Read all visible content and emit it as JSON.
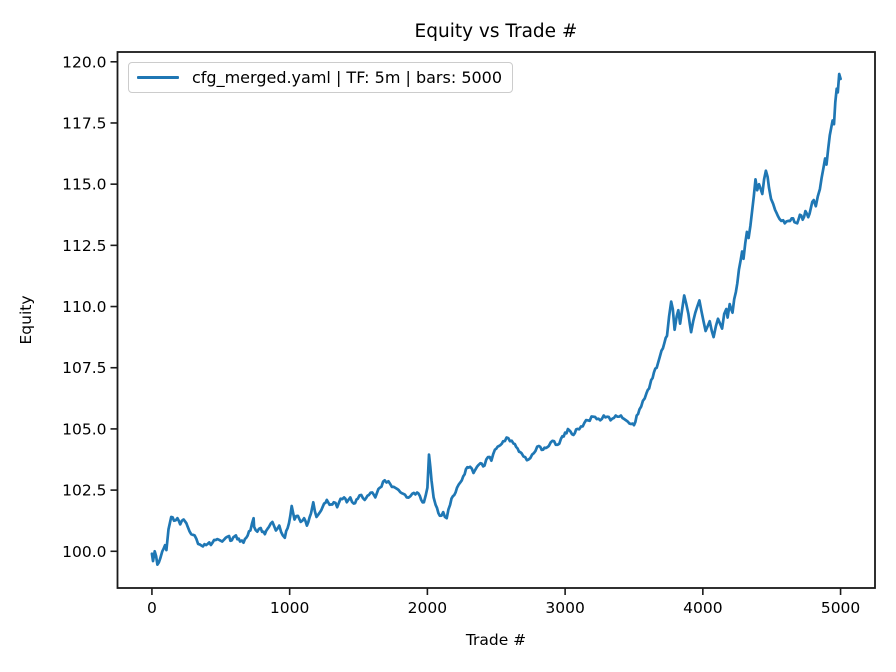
{
  "title": "Equity vs Trade #",
  "legend": {
    "label": "cfg_merged.yaml | TF: 5m | bars: 5000",
    "line_color": "#1f77b4"
  },
  "colors": {
    "series_blue": "#1f77b4",
    "spine": "#1a1a1a",
    "text": "#000000",
    "legend_border": "#cccccc"
  },
  "chart_data": {
    "type": "line",
    "title": "Equity vs Trade #",
    "xlabel": "Trade #",
    "ylabel": "Equity",
    "xlim": [
      -250,
      5250
    ],
    "ylim": [
      98.5,
      120.4
    ],
    "grid": false,
    "legend_position": "upper left",
    "x_ticks": [
      0,
      1000,
      2000,
      3000,
      4000,
      5000
    ],
    "x_tick_labels": [
      "0",
      "1000",
      "2000",
      "3000",
      "4000",
      "5000"
    ],
    "y_ticks": [
      100.0,
      102.5,
      105.0,
      107.5,
      110.0,
      112.5,
      115.0,
      117.5,
      120.0
    ],
    "y_tick_labels": [
      "100.0",
      "102.5",
      "105.0",
      "107.5",
      "110.0",
      "112.5",
      "115.0",
      "117.5",
      "120.0"
    ],
    "series": [
      {
        "name": "cfg_merged.yaml | TF: 5m | bars: 5000",
        "color": "#1f77b4",
        "points": [
          [
            0,
            99.9
          ],
          [
            8,
            99.6
          ],
          [
            20,
            100.0
          ],
          [
            40,
            99.45
          ],
          [
            60,
            99.7
          ],
          [
            75,
            100.0
          ],
          [
            95,
            100.25
          ],
          [
            105,
            100.05
          ],
          [
            120,
            100.9
          ],
          [
            140,
            101.4
          ],
          [
            160,
            101.25
          ],
          [
            185,
            101.35
          ],
          [
            205,
            101.1
          ],
          [
            230,
            101.3
          ],
          [
            260,
            101.0
          ],
          [
            285,
            100.7
          ],
          [
            310,
            100.65
          ],
          [
            335,
            100.3
          ],
          [
            370,
            100.2
          ],
          [
            405,
            100.3
          ],
          [
            440,
            100.35
          ],
          [
            475,
            100.5
          ],
          [
            510,
            100.4
          ],
          [
            550,
            100.6
          ],
          [
            580,
            100.45
          ],
          [
            610,
            100.65
          ],
          [
            640,
            100.4
          ],
          [
            665,
            100.35
          ],
          [
            695,
            100.65
          ],
          [
            715,
            100.85
          ],
          [
            738,
            101.35
          ],
          [
            742,
            101.0
          ],
          [
            765,
            100.8
          ],
          [
            790,
            100.95
          ],
          [
            820,
            100.7
          ],
          [
            850,
            101.0
          ],
          [
            875,
            101.2
          ],
          [
            900,
            100.85
          ],
          [
            925,
            101.05
          ],
          [
            950,
            100.65
          ],
          [
            965,
            100.55
          ],
          [
            995,
            101.15
          ],
          [
            1015,
            101.85
          ],
          [
            1035,
            101.3
          ],
          [
            1060,
            101.45
          ],
          [
            1080,
            101.2
          ],
          [
            1105,
            101.35
          ],
          [
            1125,
            101.05
          ],
          [
            1155,
            101.55
          ],
          [
            1172,
            102.0
          ],
          [
            1195,
            101.4
          ],
          [
            1220,
            101.6
          ],
          [
            1250,
            101.95
          ],
          [
            1270,
            102.1
          ],
          [
            1290,
            101.9
          ],
          [
            1320,
            102.0
          ],
          [
            1345,
            101.8
          ],
          [
            1370,
            102.15
          ],
          [
            1395,
            102.2
          ],
          [
            1415,
            102.0
          ],
          [
            1440,
            102.2
          ],
          [
            1465,
            101.95
          ],
          [
            1495,
            102.15
          ],
          [
            1520,
            102.3
          ],
          [
            1545,
            102.1
          ],
          [
            1575,
            102.3
          ],
          [
            1600,
            102.4
          ],
          [
            1622,
            102.2
          ],
          [
            1655,
            102.6
          ],
          [
            1690,
            102.9
          ],
          [
            1730,
            102.75
          ],
          [
            1780,
            102.55
          ],
          [
            1825,
            102.35
          ],
          [
            1850,
            102.2
          ],
          [
            1890,
            102.35
          ],
          [
            1925,
            102.4
          ],
          [
            1955,
            102.1
          ],
          [
            1975,
            102.0
          ],
          [
            2000,
            102.6
          ],
          [
            2012,
            103.95
          ],
          [
            2030,
            102.9
          ],
          [
            2045,
            102.2
          ],
          [
            2060,
            101.9
          ],
          [
            2090,
            101.45
          ],
          [
            2115,
            101.6
          ],
          [
            2140,
            101.35
          ],
          [
            2165,
            101.9
          ],
          [
            2185,
            102.25
          ],
          [
            2215,
            102.6
          ],
          [
            2250,
            102.9
          ],
          [
            2280,
            103.35
          ],
          [
            2310,
            103.45
          ],
          [
            2335,
            103.2
          ],
          [
            2360,
            103.45
          ],
          [
            2385,
            103.6
          ],
          [
            2415,
            103.5
          ],
          [
            2440,
            103.85
          ],
          [
            2465,
            103.7
          ],
          [
            2490,
            104.15
          ],
          [
            2520,
            104.3
          ],
          [
            2550,
            104.5
          ],
          [
            2575,
            104.65
          ],
          [
            2600,
            104.5
          ],
          [
            2625,
            104.4
          ],
          [
            2655,
            104.2
          ],
          [
            2685,
            104.0
          ],
          [
            2710,
            103.85
          ],
          [
            2735,
            103.75
          ],
          [
            2760,
            103.95
          ],
          [
            2785,
            104.1
          ],
          [
            2810,
            104.3
          ],
          [
            2840,
            104.15
          ],
          [
            2870,
            104.25
          ],
          [
            2895,
            104.45
          ],
          [
            2920,
            104.5
          ],
          [
            2945,
            104.35
          ],
          [
            2970,
            104.6
          ],
          [
            3000,
            104.85
          ],
          [
            3030,
            104.95
          ],
          [
            3060,
            104.75
          ],
          [
            3090,
            105.0
          ],
          [
            3115,
            105.1
          ],
          [
            3140,
            105.25
          ],
          [
            3165,
            105.35
          ],
          [
            3205,
            105.5
          ],
          [
            3230,
            105.4
          ],
          [
            3255,
            105.35
          ],
          [
            3280,
            105.55
          ],
          [
            3305,
            105.5
          ],
          [
            3330,
            105.35
          ],
          [
            3355,
            105.45
          ],
          [
            3380,
            105.5
          ],
          [
            3405,
            105.55
          ],
          [
            3430,
            105.4
          ],
          [
            3455,
            105.3
          ],
          [
            3480,
            105.2
          ],
          [
            3500,
            105.15
          ],
          [
            3520,
            105.55
          ],
          [
            3540,
            105.8
          ],
          [
            3565,
            106.15
          ],
          [
            3590,
            106.45
          ],
          [
            3610,
            106.65
          ],
          [
            3625,
            107.0
          ],
          [
            3645,
            107.3
          ],
          [
            3665,
            107.5
          ],
          [
            3685,
            107.9
          ],
          [
            3700,
            108.2
          ],
          [
            3720,
            108.5
          ],
          [
            3740,
            108.8
          ],
          [
            3755,
            109.6
          ],
          [
            3770,
            110.2
          ],
          [
            3782,
            109.9
          ],
          [
            3795,
            109.05
          ],
          [
            3810,
            109.6
          ],
          [
            3822,
            109.85
          ],
          [
            3835,
            109.3
          ],
          [
            3850,
            109.9
          ],
          [
            3865,
            110.45
          ],
          [
            3880,
            110.1
          ],
          [
            3895,
            109.7
          ],
          [
            3915,
            108.95
          ],
          [
            3930,
            109.4
          ],
          [
            3945,
            109.75
          ],
          [
            3960,
            110.0
          ],
          [
            3975,
            110.25
          ],
          [
            3990,
            109.8
          ],
          [
            4005,
            109.4
          ],
          [
            4020,
            109.0
          ],
          [
            4035,
            109.2
          ],
          [
            4050,
            109.4
          ],
          [
            4065,
            109.0
          ],
          [
            4078,
            108.75
          ],
          [
            4095,
            109.2
          ],
          [
            4110,
            109.5
          ],
          [
            4125,
            109.3
          ],
          [
            4140,
            109.1
          ],
          [
            4155,
            109.7
          ],
          [
            4170,
            109.9
          ],
          [
            4180,
            109.55
          ],
          [
            4195,
            110.1
          ],
          [
            4205,
            109.9
          ],
          [
            4215,
            109.75
          ],
          [
            4228,
            110.3
          ],
          [
            4240,
            110.6
          ],
          [
            4250,
            110.95
          ],
          [
            4262,
            111.5
          ],
          [
            4275,
            111.9
          ],
          [
            4285,
            112.25
          ],
          [
            4295,
            111.95
          ],
          [
            4308,
            112.6
          ],
          [
            4320,
            113.05
          ],
          [
            4332,
            112.8
          ],
          [
            4345,
            113.3
          ],
          [
            4358,
            113.9
          ],
          [
            4370,
            114.5
          ],
          [
            4382,
            115.2
          ],
          [
            4395,
            114.75
          ],
          [
            4408,
            115.0
          ],
          [
            4420,
            114.8
          ],
          [
            4432,
            114.6
          ],
          [
            4445,
            115.2
          ],
          [
            4458,
            115.55
          ],
          [
            4470,
            115.3
          ],
          [
            4480,
            114.85
          ],
          [
            4495,
            114.4
          ],
          [
            4510,
            114.2
          ],
          [
            4525,
            113.95
          ],
          [
            4545,
            113.7
          ],
          [
            4570,
            113.5
          ],
          [
            4595,
            113.4
          ],
          [
            4620,
            113.5
          ],
          [
            4645,
            113.6
          ],
          [
            4665,
            113.45
          ],
          [
            4685,
            113.4
          ],
          [
            4705,
            113.75
          ],
          [
            4725,
            113.55
          ],
          [
            4745,
            113.9
          ],
          [
            4765,
            113.65
          ],
          [
            4785,
            114.05
          ],
          [
            4805,
            114.35
          ],
          [
            4820,
            114.1
          ],
          [
            4835,
            114.5
          ],
          [
            4850,
            114.8
          ],
          [
            4862,
            115.25
          ],
          [
            4875,
            115.65
          ],
          [
            4888,
            116.05
          ],
          [
            4898,
            115.8
          ],
          [
            4910,
            116.45
          ],
          [
            4922,
            117.0
          ],
          [
            4932,
            117.3
          ],
          [
            4942,
            117.6
          ],
          [
            4952,
            117.45
          ],
          [
            4962,
            118.35
          ],
          [
            4972,
            118.9
          ],
          [
            4980,
            118.75
          ],
          [
            4990,
            119.5
          ],
          [
            5000,
            119.3
          ]
        ]
      }
    ]
  }
}
